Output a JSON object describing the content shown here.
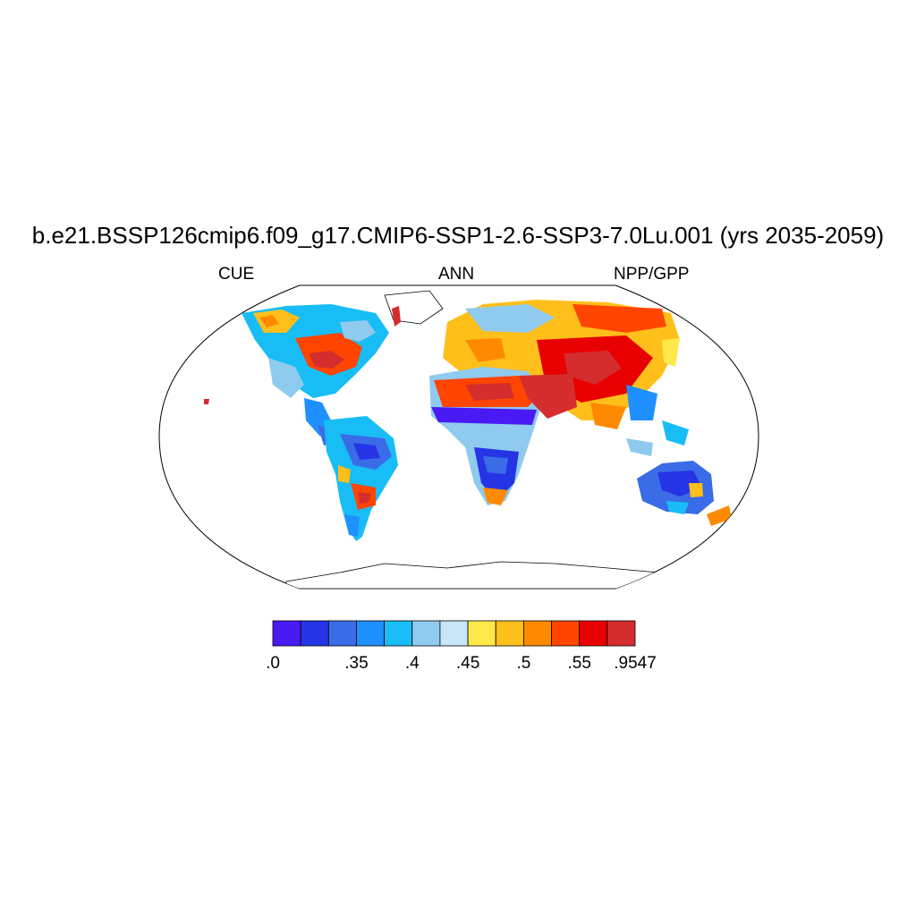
{
  "figure": {
    "title": "b.e21.BSSP126cmip6.f09_g17.CMIP6-SSP1-2.6-SSP3-7.0Lu.001 (yrs 2035-2059)",
    "left_string": "CUE",
    "center_string": "ANN",
    "right_string": "NPP/GPP"
  },
  "colorbar": {
    "colors": [
      "#4a1af5",
      "#2535e6",
      "#3a6ce8",
      "#1e90ff",
      "#18bdf5",
      "#8ecbef",
      "#c8e6f6",
      "#ffe84a",
      "#ffbf1a",
      "#ff8a00",
      "#ff4500",
      "#e80000",
      "#d52d2d"
    ],
    "labels": [
      ".0",
      ".35",
      ".4",
      ".45",
      ".5",
      ".55",
      ".9547"
    ],
    "label_edges": [
      0,
      3,
      5,
      7,
      9,
      11,
      13
    ]
  },
  "map_colors": {
    "land_outline": "#000000",
    "frame": "#000000"
  }
}
